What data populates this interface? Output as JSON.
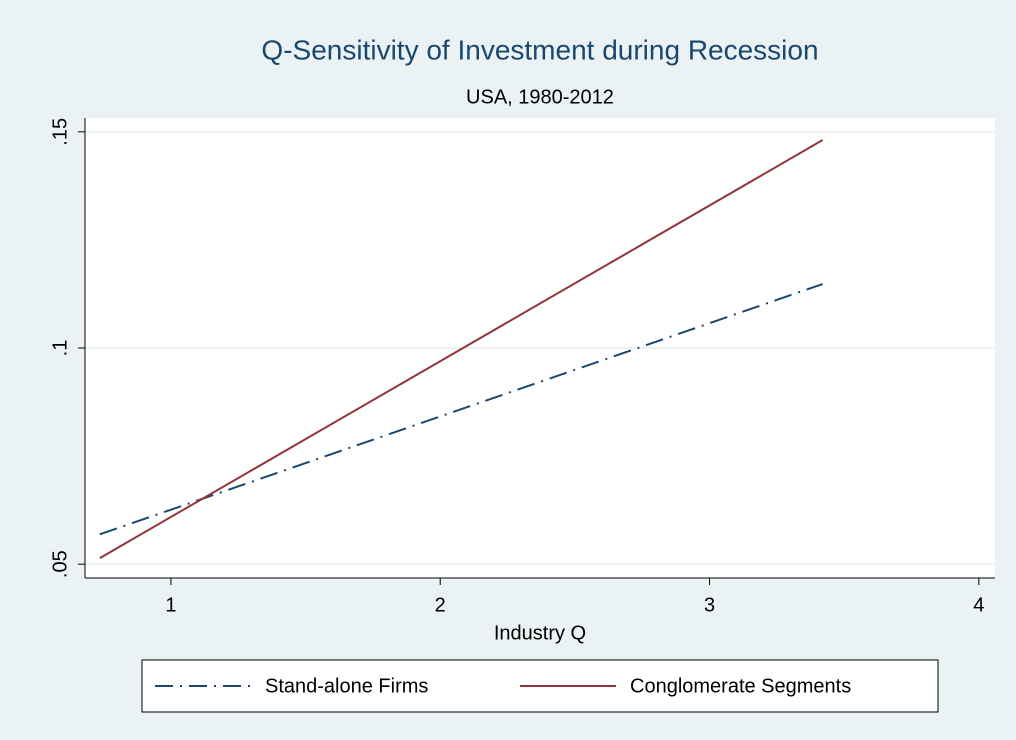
{
  "chart_data": {
    "type": "line",
    "title": "Q-Sensitivity of Investment during Recession",
    "subtitle": "USA, 1980-2012",
    "x_label": "Industry Q",
    "x": [
      0.736,
      3.42
    ],
    "series": [
      {
        "name": "Stand-alone Firms",
        "color": "#1a476f",
        "style": "dash-dot",
        "values": [
          0.0569,
          0.1148
        ]
      },
      {
        "name": "Conglomerate Segments",
        "color": "#90353b",
        "style": "solid",
        "values": [
          0.0514,
          0.1481
        ]
      }
    ],
    "xlim": [
      0.681,
      4.06
    ],
    "xticks": [
      1,
      2,
      3,
      4
    ],
    "ylim": [
      0.0468,
      0.1532
    ],
    "yticks": [
      {
        "value": 0.05,
        "label": ".05"
      },
      {
        "value": 0.1,
        "label": ".1"
      },
      {
        "value": 0.15,
        "label": ".15"
      }
    ],
    "grid": true,
    "legend": "bottom"
  }
}
